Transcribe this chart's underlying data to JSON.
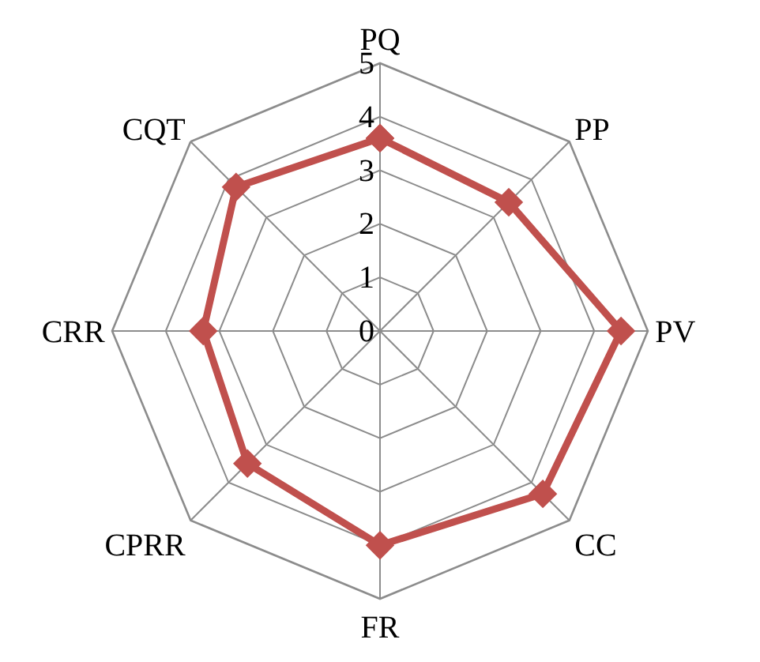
{
  "chart_data": {
    "type": "radar",
    "categories": [
      "PQ",
      "PP",
      "PV",
      "CC",
      "FR",
      "CPRR",
      "CRR",
      "CQT"
    ],
    "series": [
      {
        "color": "#c0504d",
        "values": [
          3.6,
          3.4,
          4.5,
          4.3,
          4.0,
          3.5,
          3.3,
          3.8
        ]
      }
    ],
    "ylim": [
      0,
      5
    ],
    "yticks": [
      0,
      1,
      2,
      3,
      4,
      5
    ],
    "grid": true,
    "marker": "diamond",
    "line_style": "solid"
  }
}
